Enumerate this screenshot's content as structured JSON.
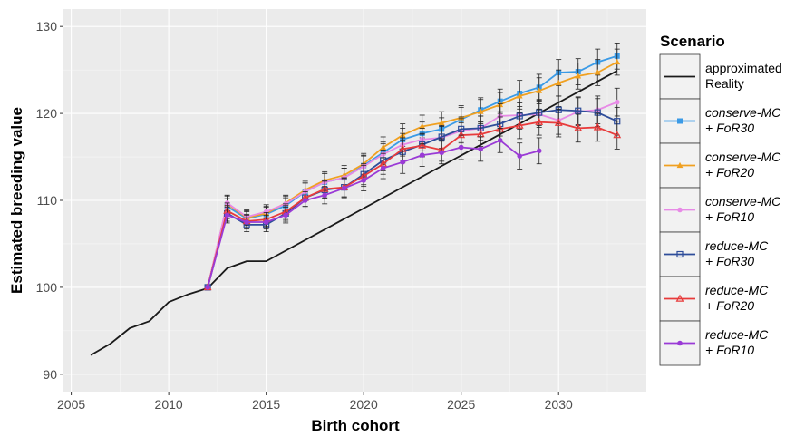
{
  "chart_data": {
    "type": "line",
    "xlabel": "Birth cohort",
    "ylabel": "Estimated breeding value",
    "xlim": [
      2004.6,
      2034.5
    ],
    "ylim": [
      88,
      132
    ],
    "x_ticks": [
      2005,
      2010,
      2015,
      2020,
      2025,
      2030
    ],
    "y_ticks": [
      90,
      100,
      110,
      120,
      130
    ],
    "x_tick_labels": [
      "2005",
      "2010",
      "2015",
      "2020",
      "2025",
      "2030"
    ],
    "y_tick_labels": [
      "90",
      "100",
      "110",
      "120",
      "130"
    ],
    "grid": true,
    "legend": {
      "title": "Scenario",
      "position": "right",
      "entries": [
        {
          "line1": "approximated",
          "line2": "Reality",
          "italic": false
        },
        {
          "line1": "conserve-MC",
          "line2": "+ FoR30",
          "italic": true
        },
        {
          "line1": "conserve-MC",
          "line2": "+ FoR20",
          "italic": true
        },
        {
          "line1": "conserve-MC",
          "line2": "+ FoR10",
          "italic": true
        },
        {
          "line1": "reduce-MC",
          "line2": "+ FoR30",
          "italic": true
        },
        {
          "line1": "reduce-MC",
          "line2": "+ FoR20",
          "italic": true
        },
        {
          "line1": "reduce-MC",
          "line2": "+ FoR10",
          "italic": true
        }
      ]
    },
    "series": [
      {
        "name": "approximated Reality",
        "color": "#1a1a1a",
        "marker": "none",
        "x": [
          2006,
          2007,
          2008,
          2009,
          2010,
          2011,
          2012,
          2013,
          2014,
          2015,
          2033
        ],
        "y": [
          92.2,
          93.5,
          95.3,
          96.1,
          98.3,
          99.2,
          99.9,
          102.2,
          103.0,
          103.0,
          124.9
        ]
      },
      {
        "name": "conserve-MC + FoR30",
        "color": "#3a9ae6",
        "marker": "square",
        "x": [
          2012,
          2013,
          2014,
          2015,
          2016,
          2017,
          2018,
          2019,
          2020,
          2021,
          2022,
          2023,
          2024,
          2025,
          2026,
          2027,
          2028,
          2029,
          2030,
          2031,
          2032,
          2033
        ],
        "y": [
          100.0,
          109.3,
          107.9,
          108.4,
          109.4,
          111.0,
          112.1,
          112.6,
          114.0,
          115.5,
          117.0,
          117.7,
          118.2,
          119.3,
          120.4,
          121.4,
          122.3,
          123.0,
          124.7,
          124.8,
          125.9,
          126.6
        ],
        "err": [
          0,
          0.9,
          0.8,
          0.8,
          0.9,
          1.0,
          1.0,
          1.1,
          1.2,
          1.2,
          1.3,
          1.3,
          1.3,
          1.4,
          1.4,
          1.4,
          1.5,
          1.5,
          1.5,
          1.5,
          1.5,
          1.5
        ]
      },
      {
        "name": "conserve-MC + FoR20",
        "color": "#f0a020",
        "marker": "triangle",
        "x": [
          2012,
          2013,
          2014,
          2015,
          2016,
          2017,
          2018,
          2019,
          2020,
          2021,
          2022,
          2023,
          2024,
          2025,
          2026,
          2027,
          2028,
          2029,
          2030,
          2031,
          2032,
          2033
        ],
        "y": [
          100.0,
          109.6,
          108.0,
          108.5,
          109.7,
          111.2,
          112.3,
          112.9,
          114.2,
          116.1,
          117.5,
          118.5,
          118.9,
          119.5,
          120.2,
          121.0,
          122.0,
          122.6,
          123.5,
          124.3,
          124.7,
          125.9
        ],
        "err": [
          0,
          0.9,
          0.8,
          0.8,
          0.9,
          1.0,
          1.0,
          1.1,
          1.2,
          1.2,
          1.3,
          1.3,
          1.3,
          1.4,
          1.4,
          1.4,
          1.5,
          1.5,
          1.5,
          1.5,
          1.5,
          1.5
        ]
      },
      {
        "name": "conserve-MC + FoR10",
        "color": "#e78ae6",
        "marker": "circle",
        "x": [
          2012,
          2013,
          2014,
          2015,
          2016,
          2017,
          2018,
          2019,
          2020,
          2021,
          2022,
          2023,
          2024,
          2025,
          2026,
          2027,
          2028,
          2029,
          2030,
          2031,
          2032,
          2033
        ],
        "y": [
          100.0,
          109.7,
          108.1,
          108.7,
          109.6,
          111.0,
          112.1,
          112.6,
          113.9,
          115.3,
          116.4,
          117.0,
          117.2,
          118.0,
          118.3,
          119.7,
          119.8,
          119.9,
          119.2,
          120.2,
          120.4,
          121.3
        ],
        "err": [
          0,
          0.9,
          0.8,
          0.8,
          0.9,
          1.0,
          1.0,
          1.1,
          1.2,
          1.2,
          1.3,
          1.3,
          1.3,
          1.4,
          1.4,
          1.4,
          1.5,
          1.5,
          1.6,
          1.6,
          1.6,
          1.6
        ]
      },
      {
        "name": "reduce-MC + FoR30",
        "color": "#2e4d9a",
        "marker": "open-square",
        "x": [
          2012,
          2013,
          2014,
          2015,
          2016,
          2017,
          2018,
          2019,
          2020,
          2021,
          2022,
          2023,
          2024,
          2025,
          2026,
          2027,
          2028,
          2029,
          2030,
          2031,
          2032,
          2033
        ],
        "y": [
          100.0,
          108.5,
          107.2,
          107.2,
          108.5,
          110.3,
          111.2,
          111.5,
          113.0,
          114.6,
          115.6,
          116.4,
          117.3,
          118.2,
          118.3,
          118.8,
          119.7,
          120.1,
          120.4,
          120.3,
          120.1,
          119.1
        ],
        "err": [
          0,
          0.9,
          0.8,
          0.8,
          0.9,
          1.0,
          1.0,
          1.1,
          1.2,
          1.2,
          1.3,
          1.3,
          1.3,
          1.4,
          1.4,
          1.4,
          1.5,
          1.5,
          1.6,
          1.6,
          1.6,
          1.6
        ]
      },
      {
        "name": "reduce-MC + FoR20",
        "color": "#e83b3b",
        "marker": "open-triangle",
        "x": [
          2012,
          2013,
          2014,
          2015,
          2016,
          2017,
          2018,
          2019,
          2020,
          2021,
          2022,
          2023,
          2024,
          2025,
          2026,
          2027,
          2028,
          2029,
          2030,
          2031,
          2032,
          2033
        ],
        "y": [
          100.0,
          108.8,
          107.6,
          107.8,
          108.7,
          110.3,
          111.3,
          111.5,
          112.8,
          114.2,
          115.9,
          116.3,
          115.8,
          117.5,
          117.6,
          118.2,
          118.6,
          119.0,
          118.9,
          118.3,
          118.4,
          117.5
        ],
        "err": [
          0,
          0.9,
          0.8,
          0.8,
          0.9,
          1.0,
          1.0,
          1.1,
          1.2,
          1.2,
          1.3,
          1.3,
          1.3,
          1.4,
          1.4,
          1.4,
          1.5,
          1.5,
          1.6,
          1.6,
          1.6,
          1.6
        ]
      },
      {
        "name": "reduce-MC + FoR10",
        "color": "#9a3ad6",
        "marker": "circle",
        "x": [
          2012,
          2013,
          2014,
          2015,
          2016,
          2017,
          2018,
          2019,
          2020,
          2021,
          2022,
          2023,
          2024,
          2025,
          2026,
          2027,
          2028,
          2029
        ],
        "y": [
          100.0,
          108.3,
          107.5,
          107.5,
          108.3,
          110.0,
          110.6,
          111.4,
          112.3,
          113.7,
          114.4,
          115.2,
          115.5,
          116.1,
          115.9,
          116.9,
          115.1,
          115.7
        ],
        "err": [
          0,
          0.9,
          0.8,
          0.8,
          0.9,
          1.0,
          1.0,
          1.1,
          1.2,
          1.2,
          1.3,
          1.3,
          1.3,
          1.4,
          1.4,
          1.4,
          1.5,
          1.5
        ]
      }
    ]
  }
}
